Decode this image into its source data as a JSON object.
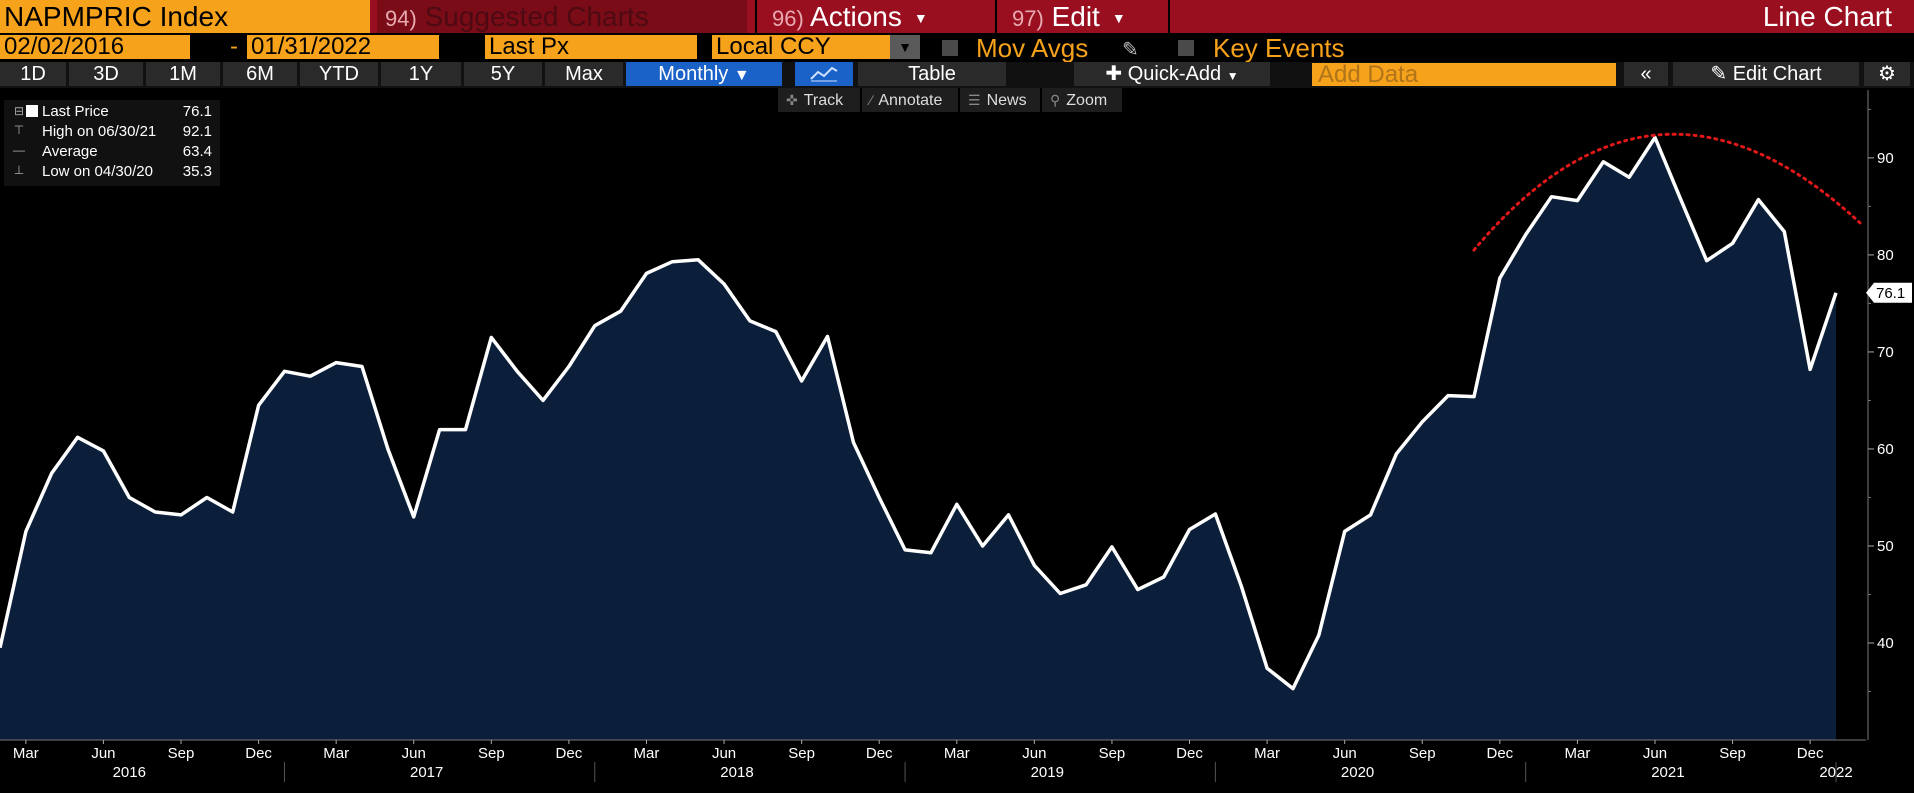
{
  "header": {
    "ticker": "NAPMPRIC Index",
    "suggested_num": "94)",
    "suggested_label": "Suggested Charts",
    "actions_num": "96)",
    "actions_label": "Actions",
    "edit_num": "97)",
    "edit_label": "Edit",
    "view_title": "Line Chart"
  },
  "controls": {
    "start_date": "02/02/2016",
    "date_sep": "-",
    "end_date": "01/31/2022",
    "field": "Last Px",
    "currency": "Local CCY",
    "mov_avgs": "Mov Avgs",
    "key_events": "Key Events"
  },
  "periods": [
    "1D",
    "3D",
    "1M",
    "6M",
    "YTD",
    "1Y",
    "5Y",
    "Max"
  ],
  "frequency": "Monthly",
  "table_label": "Table",
  "quick_add_label": "Quick-Add",
  "add_data_placeholder": "Add Data",
  "edit_chart_label": "Edit Chart",
  "tools": {
    "track": "Track",
    "annotate": "Annotate",
    "news": "News",
    "zoom": "Zoom"
  },
  "legend": {
    "last_label": "Last Price",
    "last_value": "76.1",
    "high_label": "High on 06/30/21",
    "high_value": "92.1",
    "avg_label": "Average",
    "avg_value": "63.4",
    "low_label": "Low on 04/30/20",
    "low_value": "35.3"
  },
  "last_marker": "76.1",
  "colors": {
    "orange": "#f7a21b",
    "header_red": "#9a0f1f",
    "area_fill": "#0b1f3a",
    "line": "#ffffff",
    "trend_dots": "#e01818"
  },
  "chart_data": {
    "type": "area",
    "series": [
      {
        "name": "Last Price",
        "values": [
          39.5,
          51.5,
          57.5,
          61.2,
          59.8,
          55.0,
          53.5,
          53.2,
          55.0,
          53.5,
          64.5,
          68.0,
          67.5,
          68.9,
          68.5,
          60.0,
          53.0,
          62.0,
          62.0,
          71.5,
          68.0,
          65.0,
          68.5,
          72.7,
          74.2,
          78.1,
          79.3,
          79.5,
          77.0,
          73.2,
          72.1,
          67.0,
          71.6,
          60.7,
          55.0,
          49.6,
          49.3,
          54.3,
          50.0,
          53.2,
          48.0,
          45.1,
          46.0,
          49.9,
          45.5,
          46.8,
          51.7,
          53.3,
          45.9,
          37.4,
          35.3,
          40.8,
          51.5,
          53.2,
          59.5,
          62.8,
          65.5,
          65.4,
          77.6,
          82.1,
          86.0,
          85.6,
          89.6,
          88.0,
          92.1,
          85.7,
          79.4,
          81.2,
          85.7,
          82.4,
          68.2,
          76.1
        ]
      }
    ],
    "x_start": "2016-02",
    "x_end": "2022-01",
    "x_month_ticks": [
      "Mar",
      "Jun",
      "Sep",
      "Dec",
      "Mar",
      "Jun",
      "Sep",
      "Dec",
      "Mar",
      "Jun",
      "Sep",
      "Dec",
      "Mar",
      "Jun",
      "Sep",
      "Dec",
      "Mar",
      "Jun",
      "Sep",
      "Dec",
      "Mar",
      "Jun",
      "Sep",
      "Dec"
    ],
    "x_year_labels": [
      "2016",
      "2017",
      "2018",
      "2019",
      "2020",
      "2021",
      "2022"
    ],
    "y_ticks": [
      "40",
      "50",
      "60",
      "70",
      "80",
      "90"
    ],
    "ylim": [
      30,
      97
    ],
    "grid": false,
    "annotation": "dotted red arc over the 2021 peak"
  }
}
